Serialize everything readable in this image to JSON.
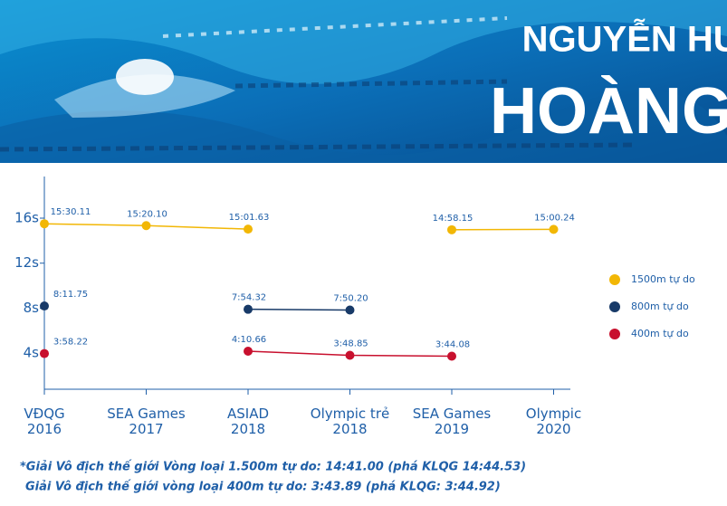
{
  "header": {
    "title_line1": "NGUYỄN HUY",
    "title_line2": "HOÀNG"
  },
  "chart_data": {
    "type": "line",
    "categories": [
      [
        "VĐQG",
        "2016"
      ],
      [
        "SEA Games",
        "2017"
      ],
      [
        "ASIAD",
        "2018"
      ],
      [
        "Olympic trẻ",
        "2018"
      ],
      [
        "SEA Games",
        "2019"
      ],
      [
        "Olympic",
        "2020"
      ]
    ],
    "series": [
      {
        "name": "1500m tự do",
        "color": "#f2b705",
        "values": [
          15.50183,
          15.335,
          15.02717,
          null,
          14.96917,
          15.004
        ],
        "value_labels": [
          "15:30.11",
          "15:20.10",
          "15:01.63",
          null,
          "14:58.15",
          "15:00.24"
        ]
      },
      {
        "name": "800m tự do",
        "color": "#183a68",
        "values": [
          8.19583,
          null,
          7.90533,
          7.83667,
          null,
          null
        ],
        "value_labels": [
          "8:11.75",
          null,
          "7:54.32",
          "7:50.20",
          null,
          null
        ]
      },
      {
        "name": "400m tự do",
        "color": "#c8102e",
        "values": [
          3.97033,
          null,
          4.17767,
          3.81417,
          3.73467,
          null
        ],
        "value_labels": [
          "3:58.22",
          null,
          "4:10.66",
          "3:48.85",
          "3:44.08",
          null
        ]
      }
    ],
    "ylim": [
      0.8,
      19.7
    ],
    "yticks": [
      {
        "value": 4,
        "label": "4s"
      },
      {
        "value": 8,
        "label": "8s"
      },
      {
        "value": 12,
        "label": "12s"
      },
      {
        "value": 16,
        "label": "16s"
      }
    ],
    "legend": "right",
    "notes": [
      "*Giải Vô địch thế giới Vòng loại 1.500m tự do: 14:41.00 (phá KLQG 14:44.53)",
      "Giải Vô địch thế giới vòng loại 400m tự do: 3:43.89 (phá KLQG: 3:44.92)"
    ]
  }
}
